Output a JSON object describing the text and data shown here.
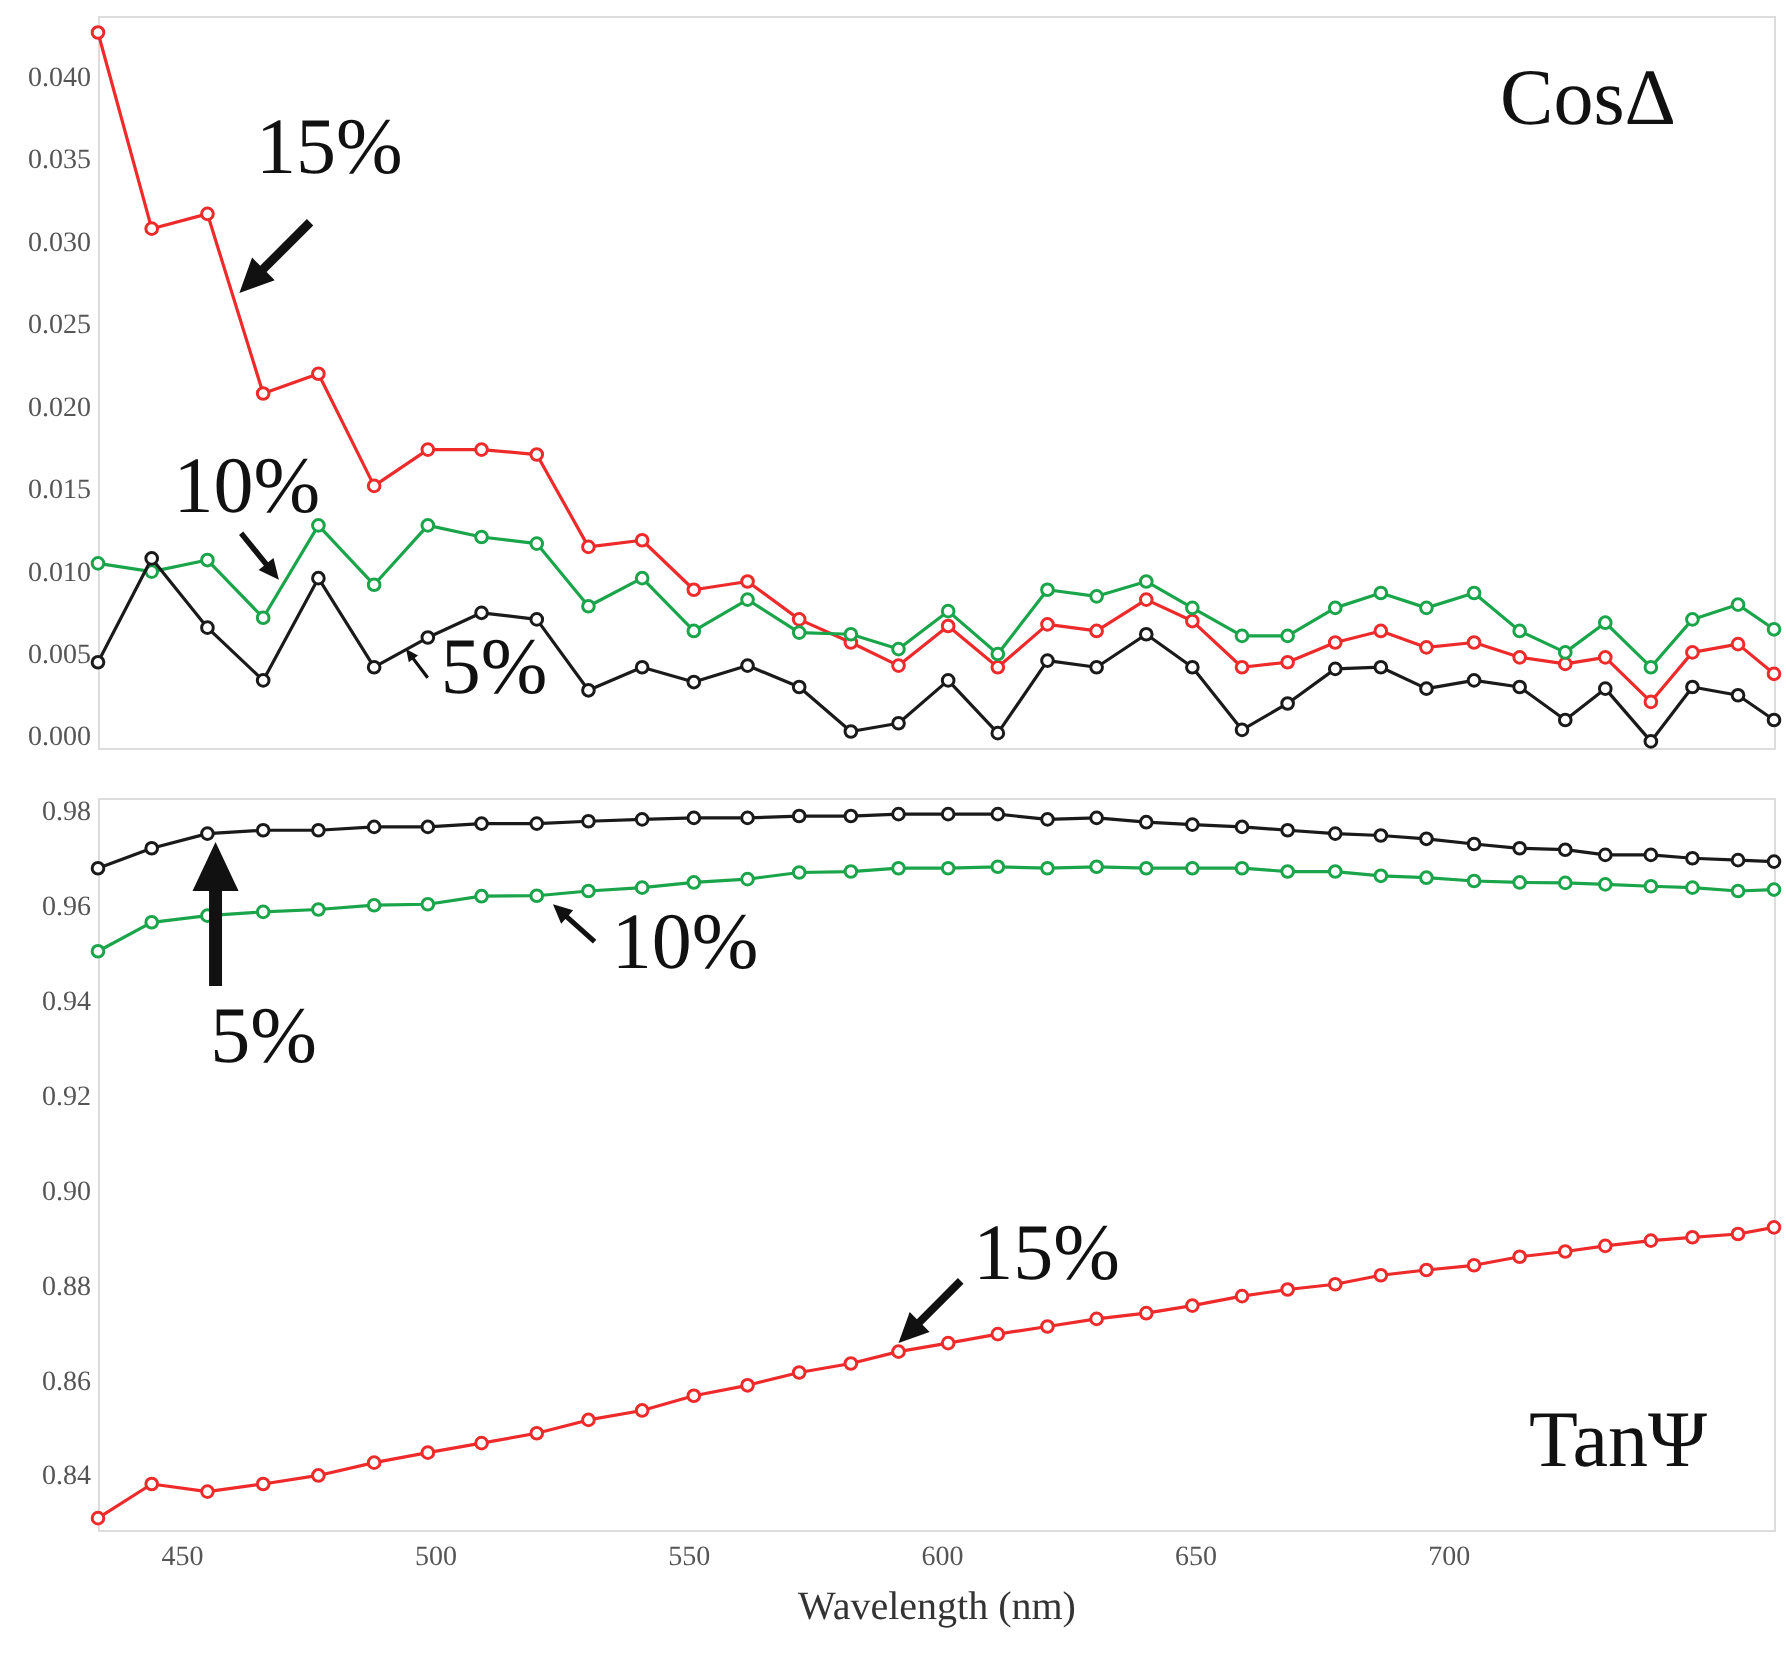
{
  "chart_data": [
    {
      "type": "line",
      "x": [
        433.5,
        444.1,
        455.1,
        466.1,
        477.0,
        488.0,
        498.6,
        509.2,
        520.1,
        530.3,
        540.9,
        551.1,
        561.7,
        571.9,
        582.1,
        591.5,
        601.3,
        611.1,
        620.9,
        630.6,
        640.4,
        649.5,
        659.3,
        668.3,
        677.7,
        686.7,
        695.7,
        705.1,
        714.1,
        723.1,
        731.0,
        740.0,
        748.2,
        757.2,
        764.3
      ],
      "xlim": [
        433.5,
        764.3
      ],
      "ylim": [
        -0.0007,
        0.0437
      ],
      "yticks": [
        {
          "value": 0,
          "label": "0.000"
        },
        0.005,
        {
          "value": 0.01,
          "label": "0.010"
        },
        0.015,
        {
          "value": 0.02,
          "label": "0.020"
        },
        0.025,
        {
          "value": 0.03,
          "label": "0.030"
        },
        0.035,
        {
          "value": 0.04,
          "label": "0.040"
        }
      ],
      "tick_labels": "y",
      "marker": "circle",
      "line_style": "solid",
      "grid": false,
      "series": [
        {
          "color": "#ee2a2a",
          "values": [
            0.0427,
            0.0308,
            0.0317,
            0.0208,
            0.022,
            0.0152,
            0.0174,
            0.0174,
            0.0171,
            0.0115,
            0.0119,
            0.0089,
            0.0094,
            0.0071,
            0.0057,
            0.0043,
            0.0067,
            0.0042,
            0.0068,
            0.0064,
            0.0083,
            0.007,
            0.0042,
            0.0045,
            0.0057,
            0.0064,
            0.0054,
            0.0057,
            0.0048,
            0.0044,
            0.0048,
            0.0021,
            0.0051,
            0.0056,
            0.0038
          ]
        },
        {
          "color": "#1aa54a",
          "values": [
            0.0105,
            0.01,
            0.0107,
            0.0072,
            0.0128,
            0.0092,
            0.0128,
            0.0121,
            0.0117,
            0.0079,
            0.0096,
            0.0064,
            0.0083,
            0.0063,
            0.0062,
            0.0053,
            0.0076,
            0.005,
            0.0089,
            0.0085,
            0.0094,
            0.0078,
            0.0061,
            0.0061,
            0.0078,
            0.0087,
            0.0078,
            0.0087,
            0.0064,
            0.0051,
            0.0069,
            0.0042,
            0.0071,
            0.008,
            0.0065
          ]
        },
        {
          "color": "#1a1a1a",
          "values": [
            0.0045,
            0.0108,
            0.0066,
            0.0034,
            0.0096,
            0.0042,
            0.006,
            0.0075,
            0.0071,
            0.0028,
            0.0042,
            0.0033,
            0.0043,
            0.003,
            0.0003,
            0.0008,
            0.0034,
            0.0002,
            0.0046,
            0.0042,
            0.0062,
            0.0042,
            0.0004,
            0.002,
            0.0041,
            0.0042,
            0.0029,
            0.0034,
            0.003,
            0.001,
            0.0029,
            -0.0003,
            0.003,
            0.0025,
            0.001
          ]
        }
      ],
      "annotations": [
        "CosΔ",
        {
          "text": "15%",
          "x": 461.4,
          "y": 0.0269
        },
        {
          "text": "10%",
          "x": 469.2,
          "y": 0.0095
        },
        {
          "text": "5%",
          "x": 494.3,
          "y": 0.0053
        }
      ]
    },
    {
      "type": "line",
      "x": [
        433.5,
        444.1,
        455.1,
        466.1,
        477.0,
        488.0,
        498.6,
        509.2,
        520.1,
        530.3,
        540.9,
        551.1,
        561.7,
        571.9,
        582.1,
        591.5,
        601.3,
        611.1,
        620.9,
        630.6,
        640.4,
        649.5,
        659.3,
        668.3,
        677.7,
        686.7,
        695.7,
        705.1,
        714.1,
        723.1,
        731.0,
        740.0,
        748.2,
        757.2,
        764.3
      ],
      "xlim": [
        433.5,
        764.3
      ],
      "xticks": [
        450,
        500,
        550,
        600,
        650,
        700
      ],
      "xlabel": "Wavelength (nm)",
      "ylim": [
        0.8285,
        0.9828
      ],
      "yticks": [
        0.98,
        0.96,
        0.94,
        0.92,
        {
          "value": 0.9,
          "label": "0.90"
        },
        0.88,
        0.86,
        0.84
      ],
      "marker": "circle",
      "line_style": "solid",
      "grid": false,
      "series": [
        {
          "color": "#1a1a1a",
          "values": [
            0.968,
            0.9722,
            0.9753,
            0.976,
            0.976,
            0.9767,
            0.9767,
            0.9774,
            0.9774,
            0.9779,
            0.9783,
            0.9786,
            0.9786,
            0.979,
            0.979,
            0.9794,
            0.9794,
            0.9794,
            0.9783,
            0.9786,
            0.9777,
            0.9772,
            0.9767,
            0.976,
            0.9753,
            0.9749,
            0.9742,
            0.9731,
            0.9722,
            0.9719,
            0.9708,
            0.9708,
            0.9701,
            0.9697,
            0.9694
          ]
        },
        {
          "color": "#1aa54a",
          "values": [
            0.9505,
            0.9566,
            0.958,
            0.9588,
            0.9593,
            0.9602,
            0.9604,
            0.9621,
            0.9622,
            0.9632,
            0.9639,
            0.965,
            0.9657,
            0.9671,
            0.9673,
            0.968,
            0.968,
            0.9683,
            0.968,
            0.9683,
            0.968,
            0.968,
            0.968,
            0.9673,
            0.9673,
            0.9664,
            0.966,
            0.9653,
            0.965,
            0.9649,
            0.9646,
            0.9642,
            0.9639,
            0.9632,
            0.9635
          ]
        },
        {
          "color": "#ee2a2a",
          "values": [
            0.831,
            0.8382,
            0.8366,
            0.8382,
            0.84,
            0.8427,
            0.8448,
            0.8468,
            0.8489,
            0.8517,
            0.8537,
            0.8568,
            0.859,
            0.8617,
            0.8636,
            0.8661,
            0.8679,
            0.8698,
            0.8714,
            0.873,
            0.8742,
            0.8758,
            0.8778,
            0.8792,
            0.8803,
            0.8822,
            0.8833,
            0.8843,
            0.8861,
            0.8872,
            0.8884,
            0.8895,
            0.8902,
            0.8909,
            0.8923
          ]
        }
      ],
      "annotations": [
        "TanΨ",
        {
          "text": "5%",
          "x": 456.7,
          "y": 0.9735
        },
        {
          "text": "10%",
          "x": 523.3,
          "y": 0.9604
        },
        {
          "text": "15%",
          "x": 591.5,
          "y": 0.8679
        }
      ]
    }
  ]
}
